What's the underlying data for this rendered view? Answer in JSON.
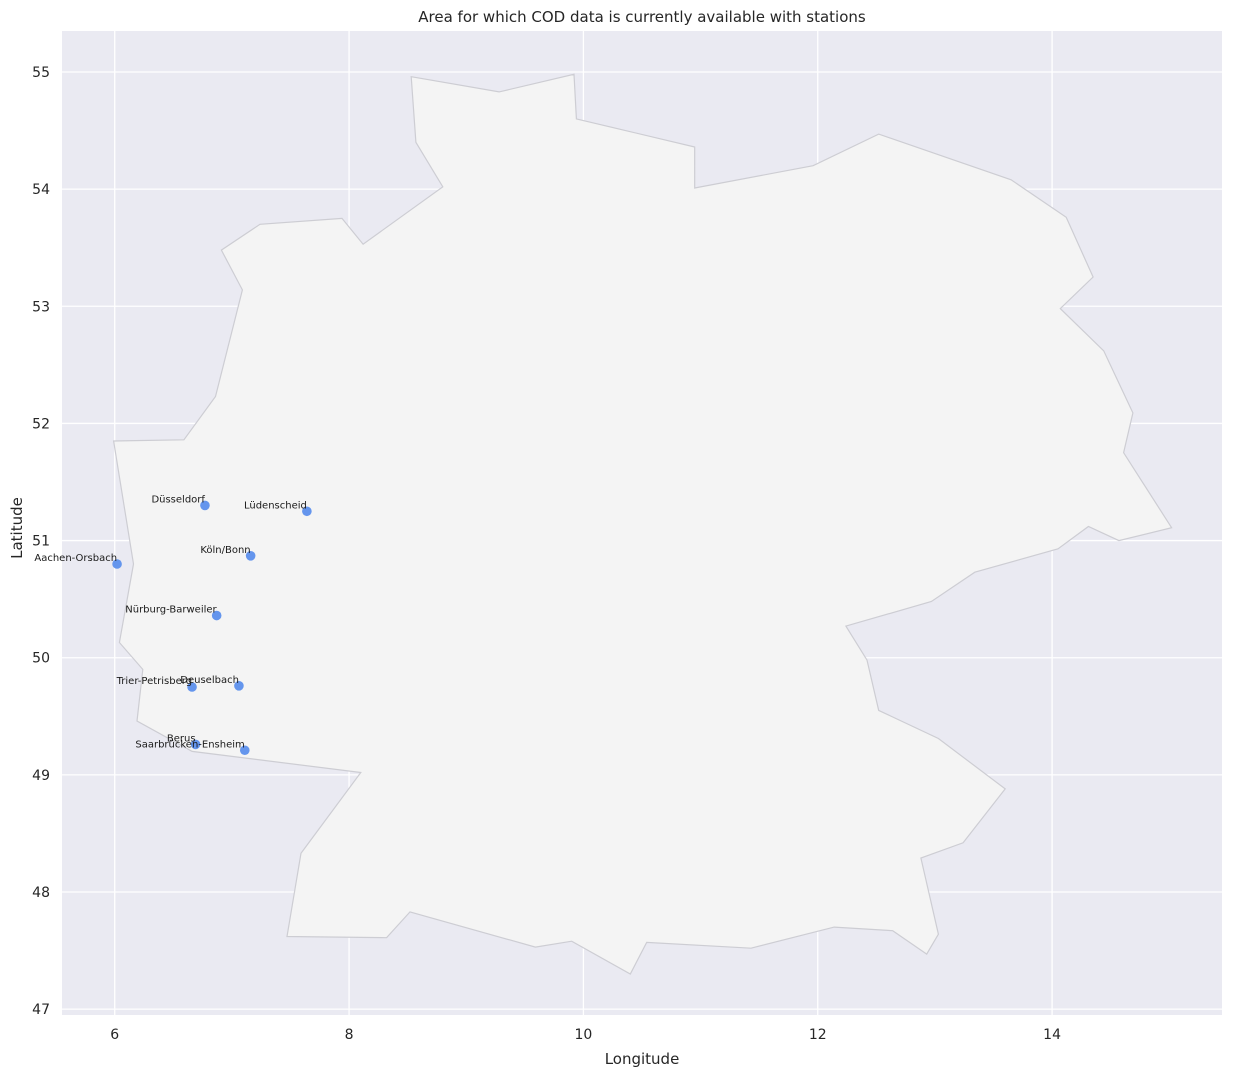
{
  "chart_data": {
    "type": "scatter",
    "title": "Area for which COD data is currently available with stations",
    "xlabel": "Longitude",
    "ylabel": "Latitude",
    "xlim": [
      5.55,
      15.45
    ],
    "ylim": [
      46.95,
      55.35
    ],
    "xticks": [
      6,
      8,
      10,
      12,
      14
    ],
    "yticks": [
      47,
      48,
      49,
      50,
      51,
      52,
      53,
      54,
      55
    ],
    "grid": true,
    "colors": {
      "background": "#eaeaf2",
      "grid": "#ffffff",
      "area_fill": "#f4f4f4",
      "area_edge": "#cdcdd3",
      "marker": "#6495ed"
    },
    "area": [
      [
        5.99,
        51.85
      ],
      [
        6.59,
        51.86
      ],
      [
        6.86,
        52.23
      ],
      [
        7.09,
        53.14
      ],
      [
        6.91,
        53.48
      ],
      [
        7.24,
        53.7
      ],
      [
        7.94,
        53.75
      ],
      [
        8.12,
        53.53
      ],
      [
        8.8,
        54.02
      ],
      [
        8.57,
        54.4
      ],
      [
        8.53,
        54.96
      ],
      [
        9.28,
        54.83
      ],
      [
        9.92,
        54.98
      ],
      [
        9.94,
        54.6
      ],
      [
        10.95,
        54.36
      ],
      [
        10.95,
        54.01
      ],
      [
        11.96,
        54.2
      ],
      [
        12.52,
        54.47
      ],
      [
        13.65,
        54.08
      ],
      [
        14.12,
        53.76
      ],
      [
        14.35,
        53.25
      ],
      [
        14.07,
        52.98
      ],
      [
        14.44,
        52.62
      ],
      [
        14.69,
        52.09
      ],
      [
        14.61,
        51.75
      ],
      [
        15.02,
        51.11
      ],
      [
        14.57,
        51.0
      ],
      [
        14.31,
        51.12
      ],
      [
        14.05,
        50.93
      ],
      [
        13.34,
        50.73
      ],
      [
        12.97,
        50.48
      ],
      [
        12.24,
        50.27
      ],
      [
        12.42,
        49.98
      ],
      [
        12.52,
        49.55
      ],
      [
        13.03,
        49.31
      ],
      [
        13.6,
        48.88
      ],
      [
        13.24,
        48.42
      ],
      [
        12.88,
        48.29
      ],
      [
        13.03,
        47.64
      ],
      [
        12.93,
        47.47
      ],
      [
        12.64,
        47.67
      ],
      [
        12.14,
        47.7
      ],
      [
        11.43,
        47.52
      ],
      [
        10.54,
        47.57
      ],
      [
        10.4,
        47.3
      ],
      [
        9.9,
        47.58
      ],
      [
        9.59,
        47.53
      ],
      [
        8.52,
        47.83
      ],
      [
        8.32,
        47.61
      ],
      [
        7.47,
        47.62
      ],
      [
        7.59,
        48.33
      ],
      [
        8.1,
        49.02
      ],
      [
        6.66,
        49.2
      ],
      [
        6.19,
        49.46
      ],
      [
        6.24,
        49.9
      ],
      [
        6.04,
        50.13
      ],
      [
        6.16,
        50.8
      ],
      [
        5.99,
        51.85
      ]
    ],
    "stations": [
      {
        "name": "Düsseldorf",
        "lon": 6.77,
        "lat": 51.3
      },
      {
        "name": "Lüdenscheid",
        "lon": 7.64,
        "lat": 51.25
      },
      {
        "name": "Köln/Bonn",
        "lon": 7.16,
        "lat": 50.87
      },
      {
        "name": "Aachen-Orsbach",
        "lon": 6.02,
        "lat": 50.8
      },
      {
        "name": "Nürburg-Barweiler",
        "lon": 6.87,
        "lat": 50.36
      },
      {
        "name": "Trier-Petrisberg",
        "lon": 6.66,
        "lat": 49.75
      },
      {
        "name": "Deuselbach",
        "lon": 7.06,
        "lat": 49.76
      },
      {
        "name": "Berus",
        "lon": 6.69,
        "lat": 49.26
      },
      {
        "name": "Saarbrücken-Ensheim",
        "lon": 7.11,
        "lat": 49.21
      }
    ]
  }
}
